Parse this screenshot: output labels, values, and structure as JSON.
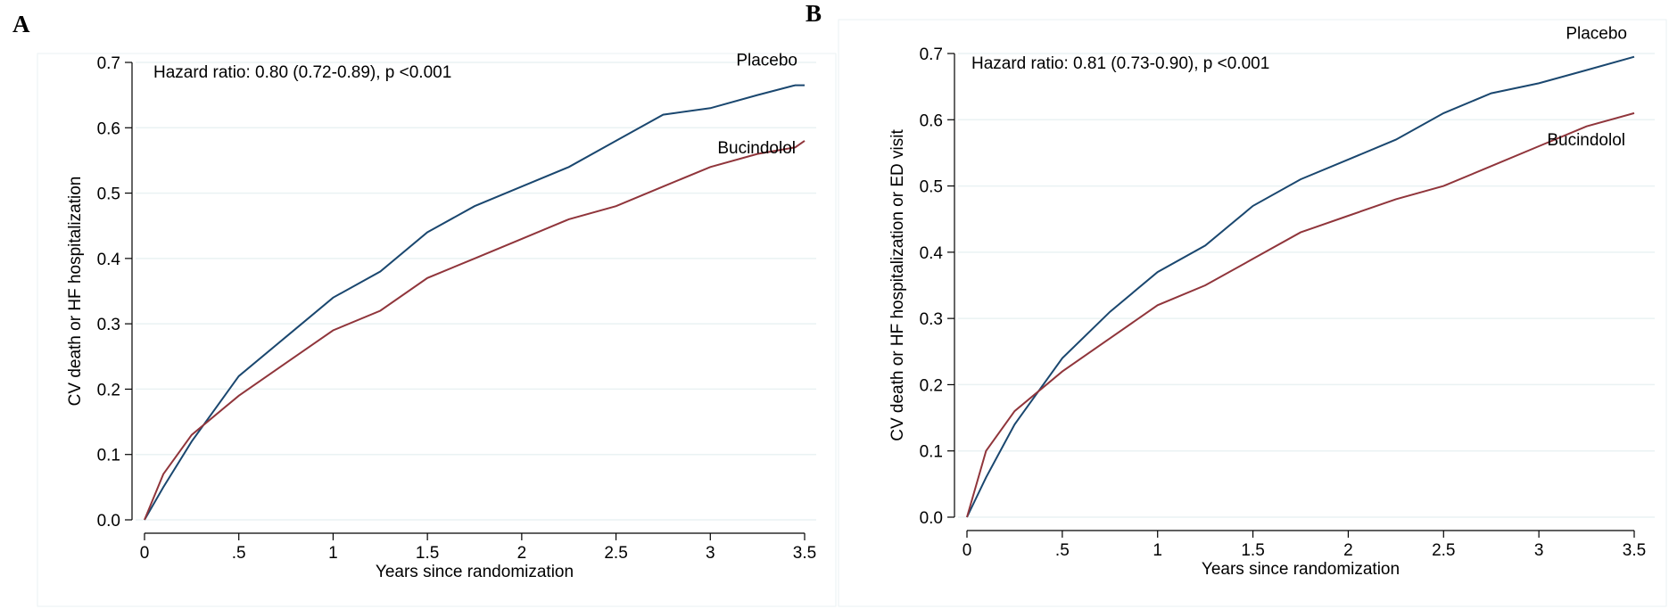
{
  "chart_data": [
    {
      "type": "line",
      "panel_label": "A",
      "annotation": "Hazard ratio: 0.80 (0.72-0.89), p <0.001",
      "xlabel": "Years since randomization",
      "ylabel": "CV death or HF hospitalization",
      "x": [
        0,
        0.1,
        0.25,
        0.5,
        0.75,
        1,
        1.25,
        1.5,
        1.75,
        2,
        2.25,
        2.5,
        2.75,
        3,
        3.25,
        3.45,
        3.5
      ],
      "series": [
        {
          "name": "Placebo",
          "color": "#1a476f",
          "values": [
            0,
            0.05,
            0.12,
            0.22,
            0.28,
            0.34,
            0.38,
            0.44,
            0.48,
            0.51,
            0.54,
            0.58,
            0.62,
            0.63,
            0.65,
            0.665,
            0.665
          ]
        },
        {
          "name": "Bucindolol",
          "color": "#90353b",
          "values": [
            0,
            0.07,
            0.13,
            0.19,
            0.24,
            0.29,
            0.32,
            0.37,
            0.4,
            0.43,
            0.46,
            0.48,
            0.51,
            0.54,
            0.56,
            0.57,
            0.58
          ]
        }
      ],
      "xlim": [
        0,
        3.5
      ],
      "xticks": [
        0,
        {
          "value": 0.5,
          "label": ".5"
        },
        1,
        1.5,
        2,
        2.5,
        3,
        3.5
      ],
      "ylim": [
        0,
        0.7
      ],
      "yticks": [
        {
          "value": 0,
          "label": "0.0"
        },
        0.1,
        0.2,
        0.3,
        0.4,
        0.5,
        0.6,
        0.7
      ],
      "grid": true
    },
    {
      "type": "line",
      "panel_label": "B",
      "annotation": "Hazard ratio: 0.81 (0.73-0.90), p <0.001",
      "xlabel": "Years since randomization",
      "ylabel": "CV death or HF hospitalization or ED visit",
      "x": [
        0,
        0.1,
        0.25,
        0.5,
        0.75,
        1,
        1.25,
        1.5,
        1.75,
        2,
        2.25,
        2.5,
        2.75,
        3,
        3.25,
        3.5
      ],
      "series": [
        {
          "name": "Placebo",
          "color": "#1a476f",
          "values": [
            0,
            0.06,
            0.14,
            0.24,
            0.31,
            0.37,
            0.41,
            0.47,
            0.51,
            0.54,
            0.57,
            0.61,
            0.64,
            0.655,
            0.675,
            0.695
          ]
        },
        {
          "name": "Bucindolol",
          "color": "#90353b",
          "values": [
            0,
            0.1,
            0.16,
            0.22,
            0.27,
            0.32,
            0.35,
            0.39,
            0.43,
            0.455,
            0.48,
            0.5,
            0.53,
            0.56,
            0.59,
            0.61
          ]
        }
      ],
      "xlim": [
        0,
        3.5
      ],
      "xticks": [
        0,
        {
          "value": 0.5,
          "label": ".5"
        },
        1,
        1.5,
        2,
        2.5,
        3,
        3.5
      ],
      "ylim": [
        0,
        0.7
      ],
      "yticks": [
        {
          "value": 0,
          "label": "0.0"
        },
        0.1,
        0.2,
        0.3,
        0.4,
        0.5,
        0.6,
        0.7
      ],
      "grid": true
    }
  ]
}
